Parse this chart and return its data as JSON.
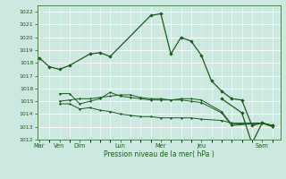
{
  "background_color": "#cce8e0",
  "grid_color": "#ffffff",
  "line_color": "#1a5c1a",
  "xlabel": "Pression niveau de la mer( hPa )",
  "ylim": [
    1012,
    1022.5
  ],
  "yticks": [
    1012,
    1013,
    1014,
    1015,
    1016,
    1017,
    1018,
    1019,
    1020,
    1021,
    1022
  ],
  "major_xtick_positions": [
    0,
    1,
    2,
    4,
    6,
    8,
    11
  ],
  "major_xtick_labels": [
    "Mar",
    "Ven",
    "Dim",
    "Lun",
    "Mer",
    "Jeu",
    "Sam"
  ],
  "xlim": [
    -0.1,
    11.9
  ],
  "series1_x": [
    0,
    0.5,
    1.0,
    1.5,
    2.5,
    3.0,
    3.5,
    5.5,
    6.0,
    6.5,
    7.0,
    7.5,
    8.0,
    8.5,
    9.0,
    9.5,
    10.0,
    10.5,
    11.0,
    11.5
  ],
  "series1_y": [
    1018.4,
    1017.7,
    1017.5,
    1017.8,
    1018.7,
    1018.8,
    1018.5,
    1021.7,
    1021.85,
    1018.7,
    1020.0,
    1019.7,
    1018.6,
    1016.6,
    1015.8,
    1015.2,
    1015.1,
    1013.1,
    1013.3,
    1013.1
  ],
  "series2_x": [
    1.0,
    1.5,
    2.0,
    2.5,
    3.0,
    3.5,
    4.0,
    4.5,
    5.0,
    5.5,
    6.0,
    6.5,
    7.0,
    7.5,
    8.0,
    9.0,
    9.5,
    11.0,
    11.5
  ],
  "series2_y": [
    1015.6,
    1015.6,
    1014.8,
    1015.0,
    1015.2,
    1015.7,
    1015.4,
    1015.3,
    1015.2,
    1015.1,
    1015.1,
    1015.1,
    1015.2,
    1015.2,
    1015.1,
    1014.2,
    1013.2,
    1013.3,
    1013.1
  ],
  "series3_x": [
    1.0,
    1.5,
    2.0,
    2.5,
    3.0,
    3.5,
    4.0,
    4.5,
    5.0,
    5.5,
    6.0,
    6.5,
    7.0,
    7.5,
    8.0,
    9.0,
    9.5,
    11.0,
    11.5
  ],
  "series3_y": [
    1014.8,
    1014.8,
    1014.4,
    1014.5,
    1014.3,
    1014.2,
    1014.0,
    1013.9,
    1013.8,
    1013.8,
    1013.7,
    1013.7,
    1013.7,
    1013.7,
    1013.6,
    1013.5,
    1013.3,
    1013.3,
    1013.1
  ],
  "series4_x": [
    1.0,
    1.5,
    2.0,
    2.5,
    3.0,
    3.5,
    4.0,
    4.5,
    5.0,
    5.5,
    6.0,
    6.5,
    7.0,
    7.5,
    8.0,
    9.0,
    9.5,
    11.0,
    11.5
  ],
  "series4_y": [
    1015.0,
    1015.1,
    1015.2,
    1015.2,
    1015.3,
    1015.4,
    1015.5,
    1015.5,
    1015.3,
    1015.2,
    1015.2,
    1015.1,
    1015.1,
    1015.0,
    1014.9,
    1014.1,
    1013.1,
    1013.3,
    1013.0
  ],
  "series5_x": [
    9.0,
    10.0,
    10.5,
    11.0,
    11.5
  ],
  "series5_y": [
    1015.2,
    1014.1,
    1011.7,
    1013.3,
    1013.1
  ]
}
